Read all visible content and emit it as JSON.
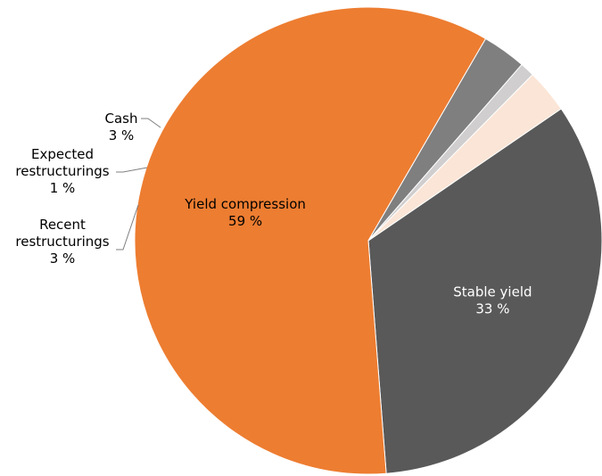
{
  "chart_data": {
    "type": "pie",
    "unit": "%",
    "slices": [
      {
        "label": "Stable yield",
        "value": 33,
        "color": "#595959",
        "label_color": "#ffffff"
      },
      {
        "label": "Yield compression",
        "value": 59,
        "color": "#ed7d31",
        "label_color": "#000000"
      },
      {
        "label": "Recent restructurings",
        "value": 3,
        "color": "#7f7f7f",
        "label_color": "#000000"
      },
      {
        "label": "Expected restructurings",
        "value": 1,
        "color": "#d0cece",
        "label_color": "#000000"
      },
      {
        "label": "Cash",
        "value": 3,
        "color": "#fbe5d6",
        "label_color": "#000000"
      }
    ]
  }
}
